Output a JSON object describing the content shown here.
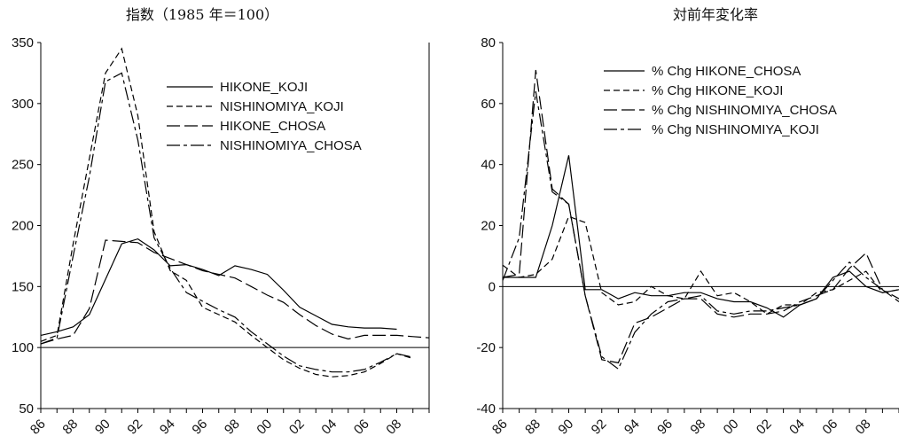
{
  "chart_data": [
    {
      "type": "line",
      "title": "指数（1985 年＝100）",
      "xlabel": "",
      "ylabel": "",
      "x": [
        "86",
        "87",
        "88",
        "89",
        "90",
        "91",
        "92",
        "93",
        "94",
        "95",
        "96",
        "97",
        "98",
        "99",
        "00",
        "01",
        "02",
        "03",
        "04",
        "05",
        "06",
        "07",
        "08",
        "09",
        "10"
      ],
      "x_tick_labels": [
        "86",
        "88",
        "90",
        "92",
        "94",
        "96",
        "98",
        "00",
        "02",
        "04",
        "06",
        "08"
      ],
      "ylim": [
        50,
        350
      ],
      "y_ticks": [
        50,
        100,
        150,
        200,
        250,
        300,
        350
      ],
      "reference_line": 100,
      "legend_placement": "upper-right",
      "series": [
        {
          "name": "HIKONE_KOJI",
          "values": [
            110,
            113,
            117,
            127,
            156,
            185,
            189,
            180,
            167,
            168,
            164,
            159,
            167,
            164,
            160,
            147,
            133,
            126,
            119,
            117,
            116,
            116,
            115,
            null,
            null
          ]
        },
        {
          "name": "NISHINOMIYA_KOJI",
          "values": [
            105,
            110,
            185,
            255,
            325,
            345,
            290,
            195,
            163,
            155,
            133,
            127,
            121,
            110,
            100,
            90,
            83,
            78,
            76,
            77,
            80,
            87,
            95,
            91,
            null
          ]
        },
        {
          "name": "HIKONE_CHOSA",
          "values": [
            103,
            107,
            110,
            132,
            188,
            187,
            186,
            178,
            173,
            168,
            163,
            160,
            157,
            150,
            143,
            137,
            127,
            118,
            111,
            107,
            110,
            110,
            110,
            109,
            108
          ]
        },
        {
          "name": "NISHINOMIYA_CHOSA",
          "values": [
            103,
            108,
            175,
            240,
            318,
            325,
            270,
            190,
            165,
            145,
            138,
            131,
            125,
            113,
            103,
            93,
            85,
            82,
            80,
            80,
            82,
            88,
            95,
            92,
            null
          ]
        }
      ]
    },
    {
      "type": "line",
      "title": "対前年変化率",
      "xlabel": "",
      "ylabel": "",
      "x": [
        "86",
        "87",
        "88",
        "89",
        "90",
        "91",
        "92",
        "93",
        "94",
        "95",
        "96",
        "97",
        "98",
        "99",
        "00",
        "01",
        "02",
        "03",
        "04",
        "05",
        "06",
        "07",
        "08",
        "09",
        "10"
      ],
      "x_tick_labels": [
        "86",
        "88",
        "90",
        "92",
        "94",
        "96",
        "98",
        "00",
        "02",
        "04",
        "06",
        "08"
      ],
      "ylim": [
        -40,
        80
      ],
      "y_ticks": [
        -40,
        -20,
        0,
        20,
        40,
        60,
        80
      ],
      "reference_line": 0,
      "legend_placement": "upper-left",
      "series": [
        {
          "name": "% Chg HIKONE_CHOSA",
          "values": [
            3,
            3,
            3,
            20,
            43,
            -1,
            -1,
            -4,
            -2,
            -3,
            -3,
            -2,
            -2,
            -4,
            -5,
            -5,
            -7,
            -10,
            -6,
            -4,
            3,
            5,
            0,
            -2,
            -1
          ]
        },
        {
          "name": "% Chg HIKONE_KOJI",
          "values": [
            7,
            3,
            4,
            9,
            23,
            21,
            -2,
            -6,
            -5,
            0,
            -3,
            -4,
            5,
            -3,
            -2,
            -5,
            -9,
            -6,
            -6,
            -2,
            -1,
            2,
            5,
            -2,
            -1
          ]
        },
        {
          "name": "% Chg NISHINOMIYA_CHOSA",
          "values": [
            3,
            4,
            71,
            32,
            27,
            -3,
            -24,
            -25,
            -12,
            -10,
            -7,
            -4,
            -4,
            -9,
            -10,
            -9,
            -9,
            -8,
            -5,
            -3,
            -1,
            6,
            11,
            -1,
            -5
          ]
        },
        {
          "name": "% Chg NISHINOMIYA_KOJI",
          "values": [
            2,
            16,
            64,
            31,
            27,
            -3,
            -23,
            -27,
            -15,
            -9,
            -5,
            -4,
            -3,
            -8,
            -9,
            -8,
            -8,
            -7,
            -6,
            -4,
            2,
            8,
            3,
            -1,
            -4
          ]
        }
      ]
    }
  ]
}
